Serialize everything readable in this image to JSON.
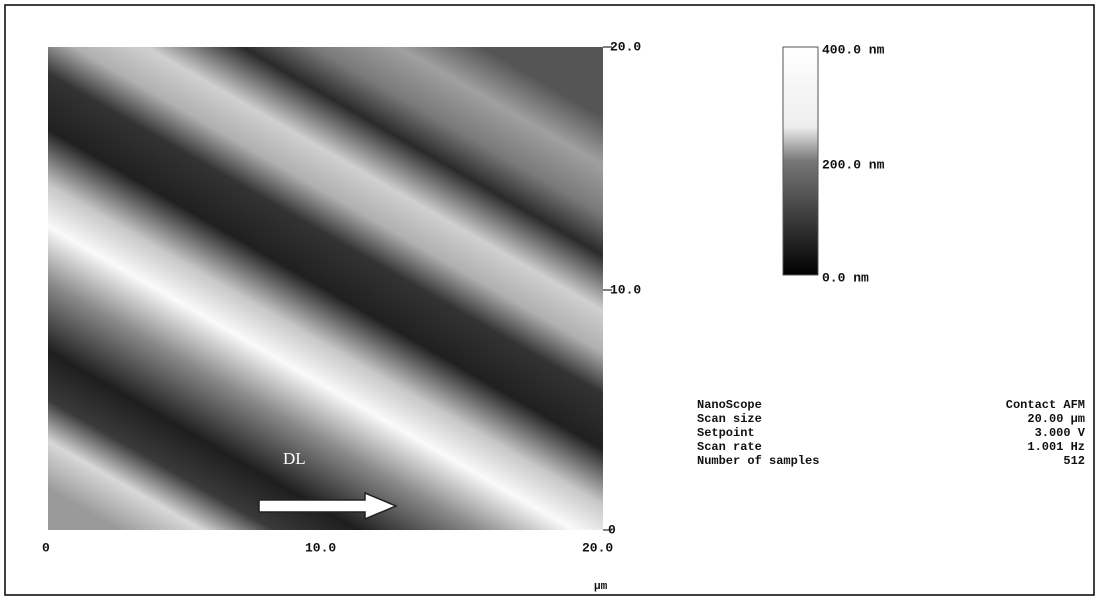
{
  "image": {
    "y_axis_labels": [
      "20.0",
      "10.0",
      "0"
    ],
    "x_axis_labels": [
      "0",
      "10.0",
      "20.0"
    ],
    "x_unit": "µm",
    "annotation": "DL"
  },
  "color_bar": {
    "labels": [
      "400.0 nm",
      "200.0 nm",
      "0.0 nm"
    ]
  },
  "info": {
    "rows": [
      [
        "NanoScope",
        "Contact AFM"
      ],
      [
        "Scan size",
        "20.00 µm"
      ],
      [
        "Setpoint",
        "3.000 V"
      ],
      [
        "Scan rate",
        "1.001 Hz"
      ],
      [
        "Number of samples",
        "512"
      ]
    ]
  }
}
